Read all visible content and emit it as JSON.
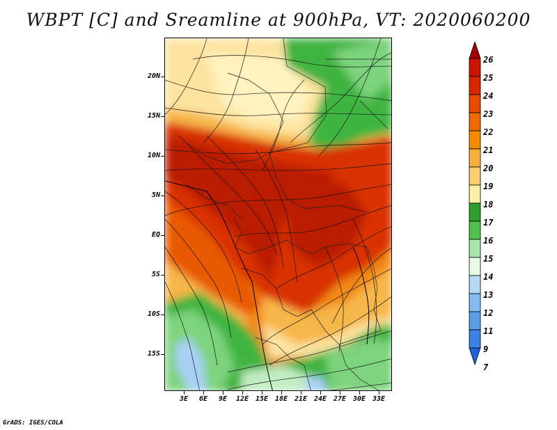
{
  "title": "WBPT [C] and Sreamline at 900hPa, VT: 2020060200",
  "credit": "GrADS: IGES/COLA",
  "lat_labels": [
    "20N",
    "15N",
    "10N",
    "5N",
    "EQ",
    "5S",
    "10S",
    "15S"
  ],
  "lon_labels": [
    "3E",
    "6E",
    "9E",
    "12E",
    "15E",
    "18E",
    "21E",
    "24E",
    "27E",
    "30E",
    "33E"
  ],
  "colorbar": {
    "labels": [
      "26",
      "25",
      "24",
      "23",
      "22",
      "21",
      "20",
      "19",
      "18",
      "17",
      "16",
      "15",
      "14",
      "13",
      "12",
      "11",
      "9",
      "7"
    ],
    "colors": [
      "#a50000",
      "#c81400",
      "#d82800",
      "#e84a00",
      "#f06a00",
      "#f58c00",
      "#f7b040",
      "#fbd070",
      "#fff0a8",
      "#2e9e2e",
      "#50c050",
      "#a8e6a8",
      "#e6fae6",
      "#b4daf5",
      "#82bcf0",
      "#5a9ee8",
      "#3c82e0",
      "#1e64d8"
    ]
  },
  "fill_colors": {
    "deep_red": "#b91e00",
    "red": "#d83200",
    "orange_red": "#e85a00",
    "orange": "#f28a14",
    "light_orange": "#f7b64a",
    "pale_yellow": "#fde3a0",
    "cream": "#fff3c0",
    "green": "#3fb43f",
    "light_green": "#7ed37e",
    "pale_green": "#c2ecc2",
    "light_blue": "#a8d0f5"
  }
}
